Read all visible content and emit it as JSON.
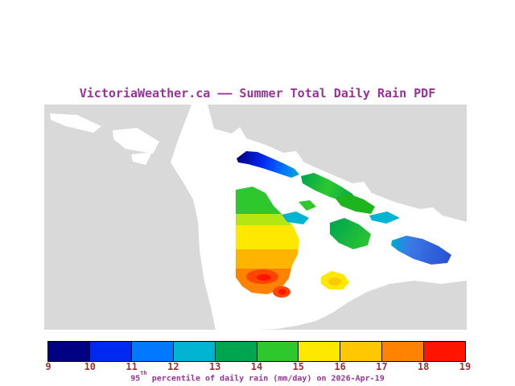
{
  "title": "VictoriaWeather.ca —— Summer Total Daily Rain PDF",
  "caption": {
    "base": "95",
    "sup": "th",
    "rest": " percentile of daily rain (mm/day) on 2026-Apr-19"
  },
  "colorbar": {
    "min": 9,
    "max": 19,
    "tick_labels": [
      "9",
      "10",
      "11",
      "12",
      "13",
      "14",
      "15",
      "16",
      "17",
      "18",
      "19"
    ],
    "segment_colors": [
      "#000082",
      "#0028F0",
      "#0078FF",
      "#00B4D2",
      "#00A550",
      "#2EC82E",
      "#FFE800",
      "#FFC800",
      "#FF8200",
      "#FF1400"
    ]
  },
  "colors": {
    "title_text": "#993399",
    "tick_text": "#993333",
    "land": "#D9D9D9",
    "water": "#FFFFFF",
    "colorbar_border": "#000000"
  }
}
